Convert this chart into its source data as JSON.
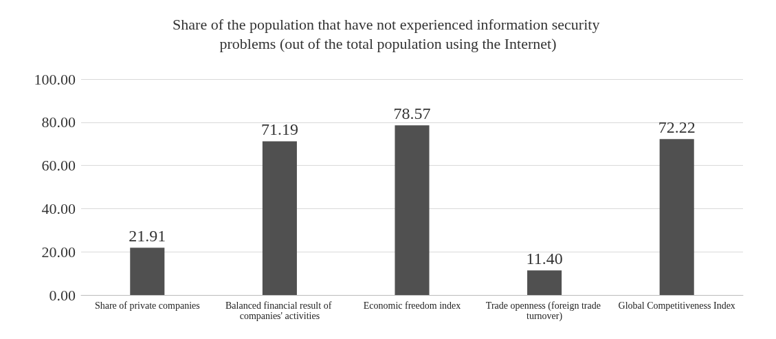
{
  "chart_data": {
    "type": "bar",
    "title": "Share of the population that have not experienced information security problems (out of the total population using the Internet)",
    "categories": [
      "Share of private companies",
      "Balanced financial result of companies' activities",
      "Economic freedom index",
      "Trade openness (foreign trade turnover)",
      "Global Competitiveness Index"
    ],
    "values": [
      21.91,
      71.19,
      78.57,
      11.4,
      72.22
    ],
    "value_labels": [
      "21.91",
      "71.19",
      "78.57",
      "11.40",
      "72.22"
    ],
    "color": "#505050",
    "ylim": [
      0,
      100
    ],
    "yticks": [
      {
        "value": 0,
        "label": "0.00"
      },
      {
        "value": 20,
        "label": "20.00"
      },
      {
        "value": 40,
        "label": "40.00"
      },
      {
        "value": 60,
        "label": "60.00"
      },
      {
        "value": 80,
        "label": "80.00"
      },
      {
        "value": 100,
        "label": "100.00"
      }
    ],
    "grid": "y"
  }
}
